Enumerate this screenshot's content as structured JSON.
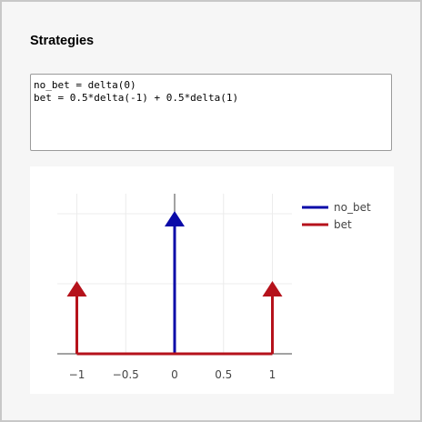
{
  "panel": {
    "title": "Strategies"
  },
  "editor": {
    "lines": [
      "no_bet = delta(0)",
      "bet = 0.5*delta(-1) + 0.5*delta(1)"
    ]
  },
  "chart_data": {
    "type": "line",
    "title": "",
    "xlabel": "",
    "ylabel": "",
    "xlim": [
      -1.2,
      1.2
    ],
    "x_ticks": [
      {
        "value": -1,
        "label": "−1"
      },
      {
        "value": -0.5,
        "label": "−0.5"
      },
      {
        "value": 0,
        "label": "0"
      },
      {
        "value": 0.5,
        "label": "0.5"
      },
      {
        "value": 1,
        "label": "1"
      }
    ],
    "grid": true,
    "legend_position": "right",
    "series": [
      {
        "name": "no_bet",
        "color": "#0a0aa8",
        "impulses": [
          {
            "x": 0,
            "weight": 1
          }
        ]
      },
      {
        "name": "bet",
        "color": "#b5121b",
        "impulses": [
          {
            "x": -1,
            "weight": 0.5
          },
          {
            "x": 1,
            "weight": 0.5
          }
        ]
      }
    ]
  }
}
